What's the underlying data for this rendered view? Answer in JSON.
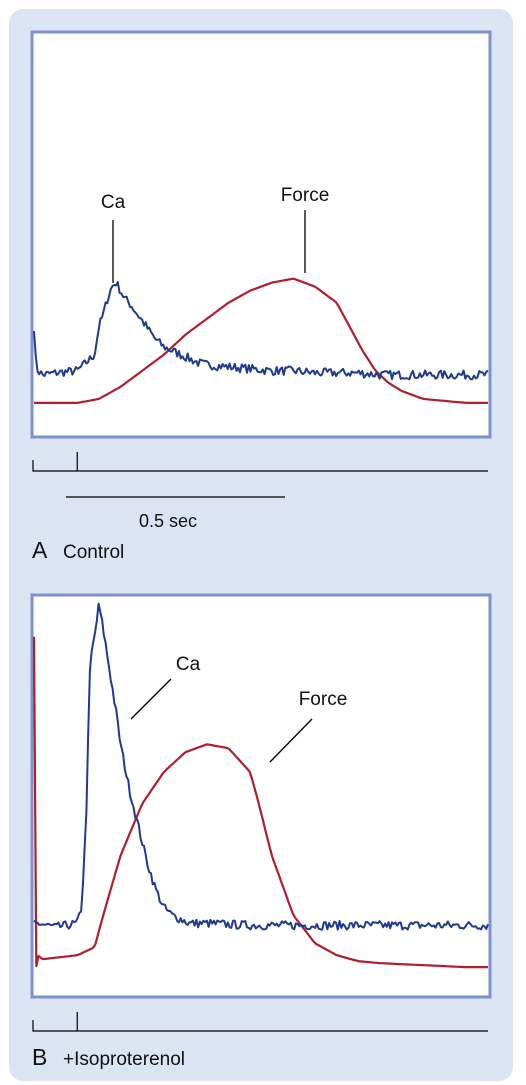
{
  "chart_data": [
    {
      "type": "line",
      "panel_letter": "A",
      "panel_label": "Control",
      "xlim": [
        0,
        1.05
      ],
      "ylim": [
        0,
        1
      ],
      "scale_bar_label": "0.5 sec",
      "stimulus_time": 0.1,
      "series": [
        {
          "name": "Ca",
          "color": "#1f3a8f",
          "x": [
            0,
            0.005,
            0.01,
            0.02,
            0.05,
            0.1,
            0.12,
            0.14,
            0.15,
            0.16,
            0.17,
            0.18,
            0.19,
            0.2,
            0.21,
            0.22,
            0.24,
            0.26,
            0.28,
            0.3,
            0.32,
            0.34,
            0.36,
            0.38,
            0.4,
            0.45,
            0.5,
            0.55,
            0.6,
            0.65,
            0.7,
            0.75,
            0.8,
            0.85,
            0.9,
            0.95,
            1.0,
            1.05
          ],
          "y": [
            0.27,
            0.17,
            0.16,
            0.15,
            0.155,
            0.16,
            0.18,
            0.2,
            0.27,
            0.3,
            0.34,
            0.37,
            0.38,
            0.36,
            0.34,
            0.33,
            0.3,
            0.27,
            0.24,
            0.22,
            0.21,
            0.2,
            0.19,
            0.18,
            0.175,
            0.17,
            0.165,
            0.16,
            0.16,
            0.155,
            0.155,
            0.155,
            0.15,
            0.15,
            0.15,
            0.15,
            0.15,
            0.15
          ]
        },
        {
          "name": "Force",
          "color": "#b01e2e",
          "x": [
            0,
            0.1,
            0.15,
            0.2,
            0.25,
            0.3,
            0.35,
            0.4,
            0.45,
            0.5,
            0.55,
            0.6,
            0.65,
            0.7,
            0.73,
            0.76,
            0.79,
            0.82,
            0.85,
            0.9,
            0.95,
            1.0,
            1.05
          ],
          "y": [
            0.08,
            0.08,
            0.09,
            0.12,
            0.16,
            0.2,
            0.25,
            0.29,
            0.33,
            0.36,
            0.38,
            0.39,
            0.37,
            0.33,
            0.27,
            0.21,
            0.16,
            0.13,
            0.11,
            0.09,
            0.085,
            0.08,
            0.08
          ]
        }
      ],
      "annotations": [
        "Ca",
        "Force"
      ]
    },
    {
      "type": "line",
      "panel_letter": "B",
      "panel_label": "+Isoproterenol",
      "xlim": [
        0,
        1.05
      ],
      "ylim": [
        0,
        1
      ],
      "stimulus_time": 0.1,
      "series": [
        {
          "name": "Ca",
          "color": "#1f3a8f",
          "x": [
            0,
            0.01,
            0.05,
            0.1,
            0.11,
            0.12,
            0.13,
            0.14,
            0.15,
            0.16,
            0.17,
            0.18,
            0.19,
            0.2,
            0.22,
            0.24,
            0.26,
            0.28,
            0.3,
            0.32,
            0.34,
            0.36,
            0.4,
            0.5,
            0.6,
            0.7,
            0.8,
            0.9,
            1.0,
            1.05
          ],
          "y": [
            0.18,
            0.18,
            0.17,
            0.18,
            0.22,
            0.42,
            0.84,
            0.9,
            0.98,
            0.92,
            0.85,
            0.78,
            0.71,
            0.63,
            0.52,
            0.43,
            0.34,
            0.27,
            0.22,
            0.2,
            0.19,
            0.18,
            0.18,
            0.175,
            0.175,
            0.175,
            0.175,
            0.175,
            0.175,
            0.175
          ]
        },
        {
          "name": "Force",
          "color": "#b01e2e",
          "x": [
            0,
            0.003,
            0.008,
            0.02,
            0.1,
            0.14,
            0.16,
            0.2,
            0.25,
            0.3,
            0.35,
            0.4,
            0.45,
            0.5,
            0.52,
            0.55,
            0.6,
            0.65,
            0.7,
            0.75,
            0.8,
            0.9,
            1.0,
            1.05
          ],
          "y": [
            0.9,
            0.05,
            0.1,
            0.09,
            0.1,
            0.12,
            0.2,
            0.35,
            0.48,
            0.56,
            0.61,
            0.63,
            0.62,
            0.56,
            0.48,
            0.35,
            0.2,
            0.13,
            0.1,
            0.085,
            0.08,
            0.075,
            0.07,
            0.07
          ]
        }
      ],
      "annotations": [
        "Ca",
        "Force"
      ]
    }
  ]
}
